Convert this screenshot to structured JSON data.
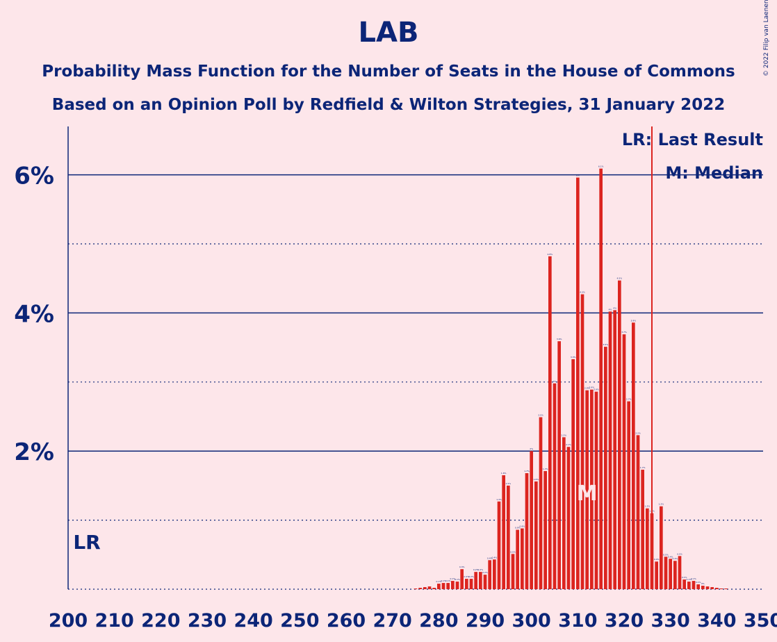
{
  "title": "LAB",
  "subtitle1": "Probability Mass Function for the Number of Seats in the House of Commons",
  "subtitle2": "Based on an Opinion Poll by Redfield & Wilton Strategies, 31 January 2022",
  "copyright": "© 2022 Filip van Laenen",
  "chart_data": {
    "type": "bar",
    "xlabel": "",
    "ylabel": "",
    "xlim": [
      200,
      350
    ],
    "ylim": [
      0,
      6.7
    ],
    "x_ticks": [
      "200",
      "210",
      "220",
      "230",
      "240",
      "250",
      "260",
      "270",
      "280",
      "290",
      "300",
      "310",
      "320",
      "330",
      "340",
      "350"
    ],
    "y_ticks": [
      "2%",
      "4%",
      "6%"
    ],
    "legend": [
      "LR: Last Result",
      "M: Median"
    ],
    "last_result": 202,
    "last_result_label": "LR",
    "median": 312,
    "median_label": "M",
    "majority_line": 326,
    "x": [
      275,
      276,
      277,
      278,
      279,
      280,
      281,
      282,
      283,
      284,
      285,
      286,
      287,
      288,
      289,
      290,
      291,
      292,
      293,
      294,
      295,
      296,
      297,
      298,
      299,
      300,
      301,
      302,
      303,
      304,
      305,
      306,
      307,
      308,
      309,
      310,
      311,
      312,
      313,
      314,
      315,
      316,
      317,
      318,
      319,
      320,
      321,
      322,
      323,
      324,
      325,
      326,
      327,
      328,
      329,
      330,
      331,
      332,
      333,
      334,
      335,
      336,
      337,
      338,
      339,
      340,
      341,
      342
    ],
    "values": [
      0.01,
      0.02,
      0.03,
      0.04,
      0.02,
      0.08,
      0.09,
      0.09,
      0.12,
      0.11,
      0.29,
      0.15,
      0.15,
      0.25,
      0.25,
      0.21,
      0.42,
      0.43,
      1.27,
      1.65,
      1.5,
      0.51,
      0.86,
      0.88,
      1.68,
      2.0,
      1.56,
      2.49,
      1.71,
      4.82,
      2.98,
      3.59,
      2.2,
      2.06,
      3.33,
      5.96,
      4.27,
      2.88,
      2.89,
      2.86,
      6.09,
      3.51,
      4.02,
      4.04,
      4.47,
      3.69,
      2.72,
      3.86,
      2.23,
      1.73,
      1.17,
      1.1,
      0.4,
      1.2,
      0.47,
      0.44,
      0.41,
      0.48,
      0.14,
      0.11,
      0.12,
      0.07,
      0.05,
      0.04,
      0.03,
      0.02,
      0.01,
      0.01
    ],
    "value_labels": [
      "0%",
      "0%",
      "0%",
      "0%",
      "0%",
      "0.1%",
      "0.1%",
      "0.1%",
      "0.1%",
      "0.1%",
      "0.3%",
      "0.2%",
      "0.2%",
      "0.2%",
      "0.2%",
      "0.2%",
      "0.4%",
      "0.4%",
      "1.3%",
      "1.6%",
      "1.5%",
      "0.5%",
      "0.9%",
      "0.9%",
      "1.7%",
      "2%",
      "1.6%",
      "2.5%",
      "1.7%",
      "4.8%",
      "3%",
      "3.6%",
      "2.2%",
      "2.1%",
      "3.3%",
      "6%",
      "4.3%",
      "2.9%",
      "2.9%",
      "2.9%",
      "6.1%",
      "3.5%",
      "4%",
      "4%",
      "4.5%",
      "3.7%",
      "2.7%",
      "3.9%",
      "2.2%",
      "1.7%",
      "1.2%",
      "1.1%",
      "0.4%",
      "1.2%",
      "0.5%",
      "0.4%",
      "0.4%",
      "0.5%",
      "0.1%",
      "0.1%",
      "0.1%",
      "0.1%",
      "0%",
      "0%",
      "0%",
      "0%",
      "0%",
      "0%"
    ],
    "colors": {
      "bar": "#dc241f",
      "axis": "#0c2577",
      "background": "#fde6ea",
      "median_label": "#fde6ea"
    },
    "grid": "solid at labelled ticks, dotted at 1%, 3%, 5%"
  }
}
